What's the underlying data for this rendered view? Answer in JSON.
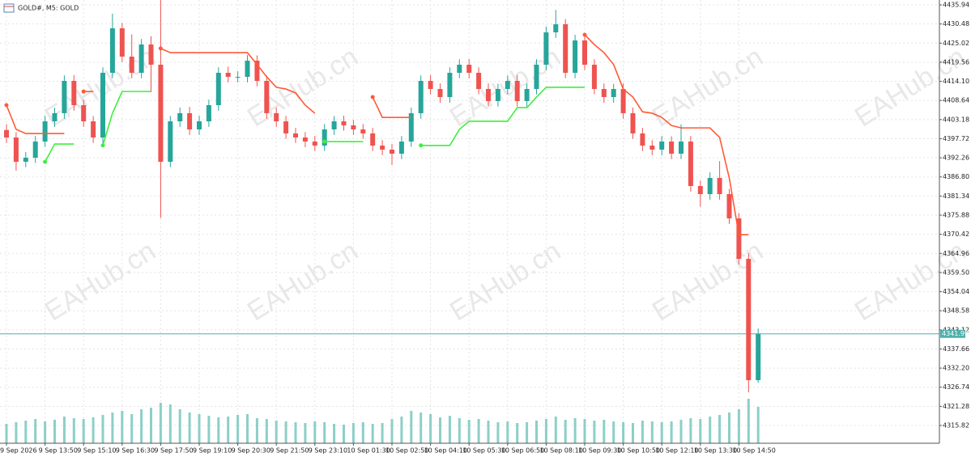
{
  "header": {
    "title": "GOLD#, M5: GOLD"
  },
  "watermark": "EAHub.cn",
  "chart_data": {
    "type": "candlestick",
    "categories": [
      "9 Sep 2026",
      null,
      null,
      null,
      "9 Sep 13:50",
      null,
      null,
      null,
      "9 Sep 15:10",
      null,
      null,
      null,
      "9 Sep 16:30",
      null,
      null,
      null,
      "9 Sep 17:50",
      null,
      null,
      null,
      "9 Sep 19:10",
      null,
      null,
      null,
      "9 Sep 20:30",
      null,
      null,
      null,
      "9 Sep 21:50",
      null,
      null,
      null,
      "9 Sep 23:10",
      null,
      null,
      null,
      "10 Sep 01:30",
      null,
      null,
      null,
      "10 Sep 02:50",
      null,
      null,
      null,
      "10 Sep 04:10",
      null,
      null,
      null,
      "10 Sep 05:30",
      null,
      null,
      null,
      "10 Sep 06:50",
      null,
      null,
      null,
      "10 Sep 08:10",
      null,
      null,
      null,
      "10 Sep 09:30",
      null,
      null,
      null,
      "10 Sep 10:50",
      null,
      null,
      null,
      "10 Sep 12:10",
      null,
      null,
      null,
      "10 Sep 13:30",
      null,
      null,
      null,
      "10 Sep 14:50",
      null,
      null
    ],
    "open": [
      4400.2,
      4398.06,
      4391.13,
      4392.29,
      4396.91,
      4402.68,
      4405.0,
      4414.23,
      4407.3,
      4402.68,
      4398.06,
      4416.54,
      4429.25,
      4421.16,
      4416.54,
      4424.63,
      4418.85,
      4391.13,
      4402.68,
      4405.0,
      4400.37,
      4402.68,
      4407.3,
      4416.54,
      4415.39,
      4415.39,
      4420.0,
      4414.23,
      4405.0,
      4402.68,
      4399.22,
      4398.06,
      4396.91,
      4395.75,
      4400.37,
      4402.68,
      4401.53,
      4400.37,
      4399.22,
      4395.75,
      4394.6,
      4393.44,
      4396.91,
      4405.0,
      4414.23,
      4411.92,
      4409.61,
      4416.54,
      4418.85,
      4416.54,
      4411.92,
      4408.46,
      4411.92,
      4414.23,
      4408.46,
      4411.92,
      4418.85,
      4428.09,
      4430.4,
      4416.54,
      4425.78,
      4418.85,
      4411.92,
      4409.61,
      4411.92,
      4405.0,
      4399.22,
      4395.75,
      4394.6,
      4396.91,
      4393.44,
      4396.91,
      4384.2,
      4381.89,
      4386.51,
      4381.89,
      4374.96,
      4363.41,
      4328.76
    ],
    "high": [
      4401.8,
      4399.6,
      4393.9,
      4398.5,
      4404.3,
      4406.6,
      4415.8,
      4415.9,
      4408.9,
      4404.2,
      4418.1,
      4433.4,
      4430.8,
      4427.5,
      4426.2,
      4427.0,
      4437.3,
      4404.2,
      4406.6,
      4406.8,
      4404.3,
      4408.9,
      4418.1,
      4418.3,
      4417.0,
      4421.6,
      4421.5,
      4415.8,
      4406.6,
      4404.2,
      4400.8,
      4399.6,
      4398.5,
      4401.9,
      4404.2,
      4404.3,
      4403.1,
      4401.9,
      4400.8,
      4397.3,
      4396.2,
      4398.5,
      4406.6,
      4415.8,
      4415.9,
      4413.5,
      4418.1,
      4420.4,
      4420.5,
      4418.1,
      4413.5,
      4413.4,
      4415.8,
      4415.9,
      4413.5,
      4420.4,
      4429.7,
      4434.5,
      4431.9,
      4427.4,
      4427.3,
      4420.4,
      4413.5,
      4413.4,
      4413.5,
      4406.6,
      4400.8,
      4397.3,
      4398.5,
      4398.4,
      4401.8,
      4398.5,
      4385.8,
      4388.1,
      4391.3,
      4383.4,
      4376.5,
      4365.0,
      4343.5
    ],
    "low": [
      4396.5,
      4388.6,
      4389.6,
      4390.8,
      4395.4,
      4401.1,
      4403.4,
      4405.7,
      4401.1,
      4396.5,
      4396.5,
      4415.0,
      4419.6,
      4415.0,
      4415.0,
      4411.0,
      4375.1,
      4389.6,
      4401.1,
      4398.8,
      4398.8,
      4401.1,
      4405.7,
      4413.8,
      4413.8,
      4413.8,
      4412.7,
      4403.4,
      4401.1,
      4397.7,
      4396.5,
      4395.3,
      4394.2,
      4394.2,
      4398.8,
      4400.0,
      4398.8,
      4397.7,
      4394.2,
      4393.0,
      4390.2,
      4391.9,
      4395.4,
      4403.4,
      4410.4,
      4408.0,
      4408.0,
      4415.0,
      4415.0,
      4410.4,
      4406.9,
      4406.9,
      4410.4,
      4406.9,
      4406.9,
      4410.4,
      4417.3,
      4426.5,
      4415.0,
      4415.0,
      4417.3,
      4410.4,
      4408.0,
      4408.0,
      4403.4,
      4397.7,
      4394.2,
      4393.0,
      4393.0,
      4391.9,
      4391.9,
      4382.6,
      4378.3,
      4380.3,
      4380.3,
      4373.4,
      4361.8,
      4325.3,
      4328.0
    ],
    "close": [
      4398.06,
      4391.13,
      4392.29,
      4396.91,
      4402.68,
      4405.0,
      4414.23,
      4407.3,
      4402.68,
      4398.06,
      4416.54,
      4429.25,
      4421.16,
      4416.54,
      4424.63,
      4418.85,
      4391.13,
      4402.68,
      4405.0,
      4400.37,
      4402.68,
      4407.3,
      4416.54,
      4415.39,
      4415.39,
      4420.0,
      4414.23,
      4405.0,
      4402.68,
      4399.22,
      4398.06,
      4396.91,
      4395.75,
      4400.37,
      4402.68,
      4401.53,
      4400.37,
      4399.22,
      4395.75,
      4394.6,
      4393.44,
      4396.91,
      4405.0,
      4414.23,
      4411.92,
      4409.61,
      4416.54,
      4418.85,
      4416.54,
      4411.92,
      4408.46,
      4411.92,
      4414.23,
      4408.46,
      4411.92,
      4418.85,
      4428.09,
      4430.4,
      4416.54,
      4425.78,
      4418.85,
      4411.92,
      4409.61,
      4411.92,
      4405.0,
      4399.22,
      4395.75,
      4394.6,
      4396.91,
      4393.44,
      4396.91,
      4384.2,
      4381.89,
      4386.51,
      4381.89,
      4374.96,
      4363.41,
      4328.76,
      4341.99
    ],
    "volume": [
      24,
      26,
      28,
      30,
      27,
      29,
      33,
      31,
      30,
      32,
      35,
      38,
      40,
      36,
      42,
      44,
      50,
      48,
      42,
      38,
      36,
      34,
      32,
      33,
      35,
      36,
      31,
      30,
      28,
      27,
      26,
      25,
      27,
      26,
      24,
      23,
      25,
      26,
      24,
      25,
      30,
      33,
      40,
      38,
      36,
      32,
      34,
      31,
      29,
      30,
      28,
      26,
      27,
      25,
      26,
      28,
      30,
      33,
      29,
      31,
      30,
      28,
      29,
      27,
      26,
      25,
      28,
      27,
      26,
      27,
      29,
      31,
      30,
      33,
      35,
      38,
      42,
      55,
      45
    ],
    "up_color": "#26a69a",
    "down_color": "#ef5350",
    "volume_color": "#8ccfc8",
    "overlays": [
      {
        "color": "#ff5a36",
        "values": [
          4407.3,
          4400.4,
          4399.2,
          4399.2,
          4399.2,
          4399.2,
          4399.2,
          null,
          4411.2,
          4411.2,
          null,
          null,
          null,
          null,
          null,
          null,
          4423.5,
          4422.3,
          4422.3,
          4422.3,
          4422.3,
          4422.3,
          4422.3,
          4422.3,
          4422.3,
          4422.3,
          4418.9,
          4415.4,
          4412.4,
          4411.9,
          4410.8,
          4407.3,
          4405.0,
          null,
          null,
          null,
          null,
          null,
          4409.6,
          4403.8,
          4403.8,
          4403.8,
          4403.8,
          null,
          null,
          null,
          null,
          null,
          null,
          null,
          null,
          null,
          null,
          null,
          null,
          null,
          null,
          null,
          null,
          null,
          4427.4,
          4424.6,
          4422.3,
          4418.9,
          4411.9,
          4409.6,
          4405.4,
          4405.0,
          4403.8,
          4401.5,
          4400.8,
          4400.8,
          4400.8,
          4400.8,
          4398.1,
          4386.5,
          4370.3,
          4370.3
        ]
      },
      {
        "color": "#3cf03c",
        "values": [
          null,
          null,
          null,
          null,
          4391.1,
          4396.2,
          4396.2,
          4396.2,
          null,
          null,
          4395.8,
          4405.0,
          4411.2,
          4411.2,
          4411.2,
          4411.2,
          null,
          null,
          null,
          null,
          null,
          null,
          null,
          null,
          null,
          null,
          null,
          null,
          null,
          null,
          null,
          null,
          null,
          4396.9,
          4396.9,
          4396.9,
          4396.9,
          4396.9,
          null,
          null,
          null,
          null,
          null,
          4395.8,
          4395.8,
          4395.8,
          4395.8,
          4400.4,
          4402.7,
          4402.7,
          4402.7,
          4402.7,
          4402.7,
          4406.6,
          4406.6,
          4409.6,
          4412.4,
          4412.4,
          4412.4,
          4412.4,
          4412.4,
          null,
          null,
          null,
          null,
          null,
          null,
          null,
          null,
          null,
          null,
          null,
          null,
          null,
          null,
          null,
          null,
          null,
          null
        ]
      }
    ],
    "current_price": 4341.99,
    "current_price_color": "#4fb0ac",
    "ylim": [
      4310.74,
      4437.33
    ],
    "yticks": [
      4435.94,
      4430.48,
      4425.02,
      4419.56,
      {
        "value": 4414.1,
        "label": "4414.10"
      },
      4408.64,
      4403.18,
      4397.72,
      4392.26,
      {
        "value": 4386.8,
        "label": "4386.80"
      },
      4381.34,
      4375.88,
      4370.42,
      4364.96,
      {
        "value": 4359.5,
        "label": "4359.50"
      },
      4354.04,
      4348.58,
      4343.12,
      4337.66,
      {
        "value": 4332.2,
        "label": "4332.20"
      },
      4326.74,
      4321.28,
      4315.82
    ],
    "grid": true
  }
}
